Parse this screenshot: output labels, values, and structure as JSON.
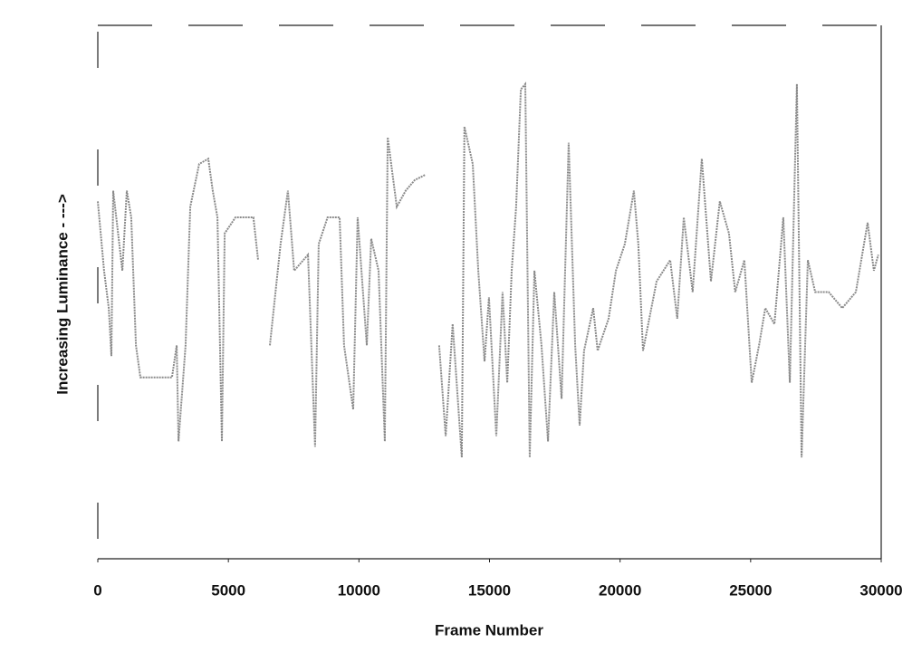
{
  "chart_data": {
    "type": "line",
    "x_label": "Frame Number",
    "y_label": "Increasing Luminance - --->",
    "x": [
      0,
      240,
      420,
      520,
      590,
      940,
      1110,
      1280,
      1460,
      1630,
      2840,
      3020,
      3090,
      3360,
      3540,
      3880,
      4230,
      4400,
      4580,
      4750,
      4860,
      5270,
      5960,
      6140,
      6300,
      6590,
      7000,
      7280,
      7520,
      8050,
      8320,
      8460,
      8800,
      9260,
      9430,
      9780,
      9950,
      10300,
      10470,
      10750,
      10990,
      11100,
      11450,
      11790,
      12140,
      12550,
      12900,
      13070,
      13320,
      13590,
      13940,
      14040,
      14360,
      14570,
      14810,
      14980,
      15260,
      15500,
      15680,
      15850,
      16020,
      16200,
      16370,
      16540,
      16720,
      16990,
      17240,
      17480,
      17760,
      18030,
      18280,
      18450,
      18620,
      18970,
      19140,
      19560,
      19840,
      20180,
      20530,
      20700,
      20880,
      21400,
      21920,
      22190,
      22440,
      22780,
      23130,
      23480,
      23820,
      24170,
      24410,
      24760,
      25040,
      25320,
      25560,
      25910,
      26250,
      26500,
      26770,
      26950,
      27190,
      27470,
      27990,
      28510,
      29030,
      29480,
      29720,
      29890
    ],
    "series": [
      {
        "color": "#8a8a8a",
        "values": [
          67,
          54,
          47,
          38,
          69,
          54,
          69,
          64,
          40,
          34,
          34,
          40,
          22,
          40,
          66,
          74,
          75,
          69,
          64,
          22,
          61,
          64,
          64,
          56,
          null,
          40,
          59,
          69,
          54,
          57,
          21,
          59,
          64,
          64,
          40,
          28,
          64,
          40,
          60,
          54,
          22,
          79,
          66,
          69,
          71,
          72,
          null,
          40,
          23,
          44,
          19,
          81,
          74,
          54,
          37,
          49,
          23,
          50,
          33,
          54,
          66,
          88,
          89,
          19,
          54,
          40,
          22,
          50,
          30,
          78,
          40,
          25,
          39,
          47,
          39,
          45,
          54,
          59,
          69,
          59,
          39,
          52,
          56,
          45,
          64,
          50,
          75,
          52,
          67,
          61,
          50,
          56,
          33,
          40,
          47,
          44,
          64,
          33,
          89,
          19,
          56,
          50,
          50,
          47,
          50,
          63,
          54,
          57
        ]
      }
    ],
    "xlim": [
      0,
      30000
    ],
    "xticks": [
      0,
      5000,
      10000,
      15000,
      20000,
      25000,
      30000
    ],
    "ylim": [
      0,
      100
    ]
  }
}
